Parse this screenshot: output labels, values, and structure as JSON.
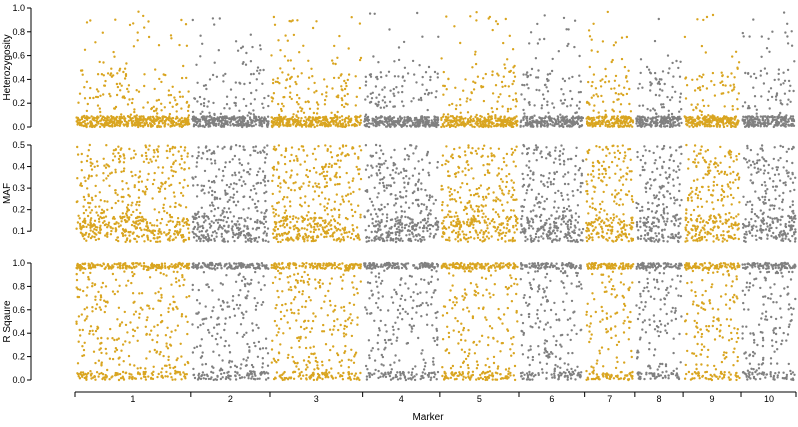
{
  "chart_data": {
    "type": "scatter",
    "xlabel": "Marker",
    "colors": [
      "#D9A520",
      "#808080"
    ],
    "chromosomes": [
      "1",
      "2",
      "3",
      "4",
      "5",
      "6",
      "7",
      "8",
      "9",
      "10"
    ],
    "chromosome_extent": [
      {
        "label": "1",
        "start": 0,
        "end": 300
      },
      {
        "label": "2",
        "start": 300,
        "end": 505
      },
      {
        "label": "3",
        "start": 505,
        "end": 745
      },
      {
        "label": "4",
        "start": 745,
        "end": 945
      },
      {
        "label": "5",
        "start": 945,
        "end": 1150
      },
      {
        "label": "6",
        "start": 1150,
        "end": 1320
      },
      {
        "label": "7",
        "start": 1320,
        "end": 1450
      },
      {
        "label": "8",
        "start": 1450,
        "end": 1575
      },
      {
        "label": "9",
        "start": 1575,
        "end": 1725
      },
      {
        "label": "10",
        "start": 1725,
        "end": 1870
      }
    ],
    "panels": [
      {
        "ylabel": "Heterozygosity",
        "ylim": [
          0,
          1.0
        ],
        "yticks": [
          "0.0",
          "0.2",
          "0.4",
          "0.6",
          "0.8",
          "1.0"
        ],
        "tick_values": [
          0,
          0.2,
          0.4,
          0.6,
          0.8,
          1.0
        ],
        "distribution": "heterozygosity"
      },
      {
        "ylabel": "MAF",
        "ylim": [
          0.05,
          0.5
        ],
        "yticks": [
          "0.1",
          "0.2",
          "0.3",
          "0.4",
          "0.5"
        ],
        "tick_values": [
          0.1,
          0.2,
          0.3,
          0.4,
          0.5
        ],
        "distribution": "maf"
      },
      {
        "ylabel": "R Sqaure",
        "ylim": [
          0,
          1.0
        ],
        "yticks": [
          "0.0",
          "0.2",
          "0.4",
          "0.6",
          "0.8",
          "1.0"
        ],
        "tick_values": [
          0,
          0.2,
          0.4,
          0.6,
          0.8,
          1.0
        ],
        "distribution": "rsquare"
      }
    ]
  }
}
